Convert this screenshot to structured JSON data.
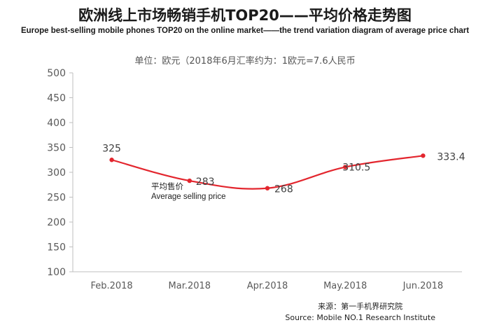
{
  "title": "欧洲线上市场畅销手机TOP20——平均价格走势图",
  "subtitle": "Europe best-selling mobile phones TOP20 on the online market——the trend variation diagram of average price chart",
  "unit_note": "单位：欧元（2018年6月汇率约为：1欧元=7.6人民币",
  "source": {
    "line1": "来源：第一手机界研究院",
    "line2": "Source: Mobile NO.1 Research Institute"
  },
  "colors": {
    "series": "#e3262e",
    "axis": "#bfbfbf",
    "tick_text": "#595959"
  },
  "chart_data": {
    "type": "line",
    "categories": [
      "Feb.2018",
      "Mar.2018",
      "Apr.2018",
      "May.2018",
      "Jun.2018"
    ],
    "series": [
      {
        "name": "平均售价",
        "name_en": "Average selling price",
        "values": [
          325,
          283,
          268,
          310.5,
          333.4
        ],
        "value_labels": [
          "325",
          "283",
          "268",
          "310.5",
          "333.4"
        ]
      }
    ],
    "ylim": [
      100,
      500
    ],
    "yticks": [
      100,
      150,
      200,
      250,
      300,
      350,
      400,
      450,
      500
    ],
    "grid": false,
    "legend": "inline"
  }
}
